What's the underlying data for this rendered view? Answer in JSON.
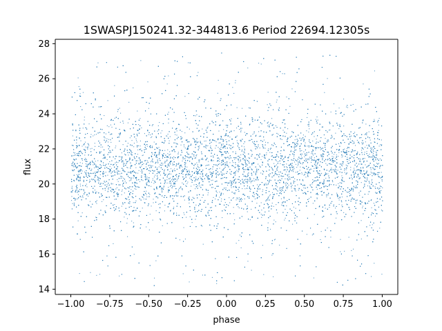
{
  "chart_data": {
    "type": "scatter",
    "title": "1SWASPJ150241.32-344813.6 Period 22694.12305s",
    "xlabel": "phase",
    "ylabel": "flux",
    "xlim": [
      -1.1,
      1.1
    ],
    "ylim": [
      13.7,
      28.25
    ],
    "xticks": [
      -1.0,
      -0.75,
      -0.5,
      -0.25,
      0.0,
      0.25,
      0.5,
      0.75,
      1.0
    ],
    "xtick_labels": [
      "−1.00",
      "−0.75",
      "−0.50",
      "−0.25",
      "0.00",
      "0.25",
      "0.50",
      "0.75",
      "1.00"
    ],
    "yticks": [
      14,
      16,
      18,
      20,
      22,
      24,
      26,
      28
    ],
    "ytick_labels": [
      "14",
      "16",
      "18",
      "20",
      "22",
      "24",
      "26",
      "28"
    ],
    "grid": false,
    "legend": "none",
    "series": [
      {
        "phase_range": [
          -1.0,
          1.0
        ],
        "flux_center": 20.9,
        "flux_core_range": [
          19.0,
          22.8
        ],
        "flux_full_range": [
          14.2,
          27.5
        ],
        "color": "#1f77b4"
      }
    ]
  }
}
